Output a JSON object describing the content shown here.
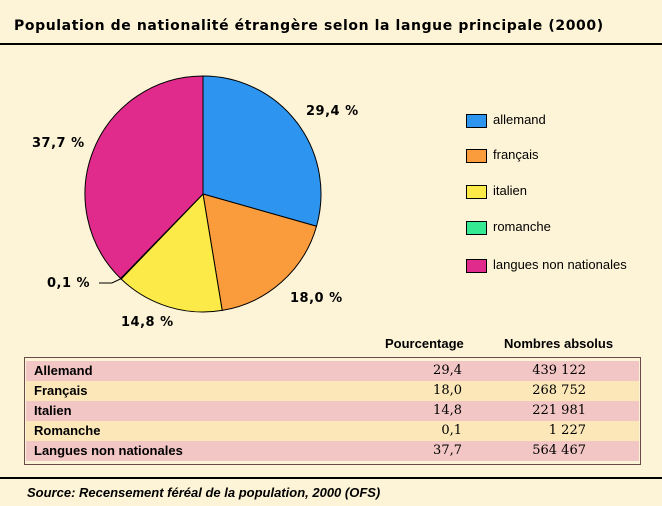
{
  "chart_data": {
    "type": "pie",
    "title": "Population de nationalité étrangère selon la langue principale (2000)",
    "slices": [
      {
        "label": "allemand",
        "value": 29.4,
        "display": "29,4 %",
        "color": "#2d95f0"
      },
      {
        "label": "français",
        "value": 18.0,
        "display": "18,0 %",
        "color": "#fa9b3c"
      },
      {
        "label": "italien",
        "value": 14.8,
        "display": "14,8 %",
        "color": "#fbea48"
      },
      {
        "label": "romanche",
        "value": 0.1,
        "display": "0,1 %",
        "color": "#35e892"
      },
      {
        "label": "langues non nationales",
        "value": 37.7,
        "display": "37,7 %",
        "color": "#e02a8c"
      }
    ],
    "legend_position": "right"
  },
  "table": {
    "headers": {
      "pct": "Pourcentage",
      "abs": "Nombres absolus"
    },
    "rows": [
      {
        "name": "Allemand",
        "pct": "29,4",
        "abs": "439 122"
      },
      {
        "name": "Français",
        "pct": "18,0",
        "abs": "268 752"
      },
      {
        "name": "Italien",
        "pct": "14,8",
        "abs": "221 981"
      },
      {
        "name": "Romanche",
        "pct": "0,1",
        "abs": "1 227"
      },
      {
        "name": "Langues non nationales",
        "pct": "37,7",
        "abs": "564 467"
      }
    ]
  },
  "source": "Source: Recensement féréal de la population, 2000 (OFS)",
  "colors": {
    "background": "#fdf3d6",
    "row_odd": "#f2c6c4",
    "row_even": "#fbe7b7"
  }
}
